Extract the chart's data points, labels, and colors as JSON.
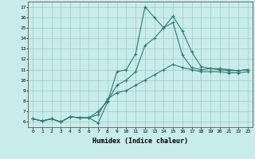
{
  "title": "",
  "xlabel": "Humidex (Indice chaleur)",
  "bg_color": "#c8ecec",
  "line_color": "#2d7a72",
  "grid_color": "#a0c8c8",
  "xlim": [
    -0.5,
    23.5
  ],
  "ylim": [
    5.5,
    17.5
  ],
  "xticks": [
    0,
    1,
    2,
    3,
    4,
    5,
    6,
    7,
    8,
    9,
    10,
    11,
    12,
    13,
    14,
    15,
    16,
    17,
    18,
    19,
    20,
    21,
    22,
    23
  ],
  "yticks": [
    6,
    7,
    8,
    9,
    10,
    11,
    12,
    13,
    14,
    15,
    16,
    17
  ],
  "series": [
    [
      6.3,
      6.1,
      6.3,
      6.0,
      6.5,
      6.4,
      6.4,
      5.9,
      7.9,
      10.8,
      11.0,
      12.5,
      17.0,
      16.0,
      15.0,
      16.1,
      14.7,
      12.7,
      11.3,
      11.1,
      11.1,
      11.0,
      10.9,
      11.0
    ],
    [
      6.3,
      6.1,
      6.3,
      6.0,
      6.5,
      6.4,
      6.4,
      7.0,
      8.0,
      9.5,
      10.0,
      10.8,
      13.3,
      14.0,
      15.0,
      15.5,
      12.4,
      11.2,
      11.0,
      11.1,
      11.0,
      10.9,
      10.9,
      11.0
    ],
    [
      6.3,
      6.1,
      6.3,
      6.0,
      6.5,
      6.4,
      6.4,
      6.7,
      8.2,
      8.8,
      9.0,
      9.5,
      10.0,
      10.5,
      11.0,
      11.5,
      11.2,
      11.0,
      10.8,
      10.8,
      10.8,
      10.7,
      10.7,
      10.8
    ]
  ]
}
